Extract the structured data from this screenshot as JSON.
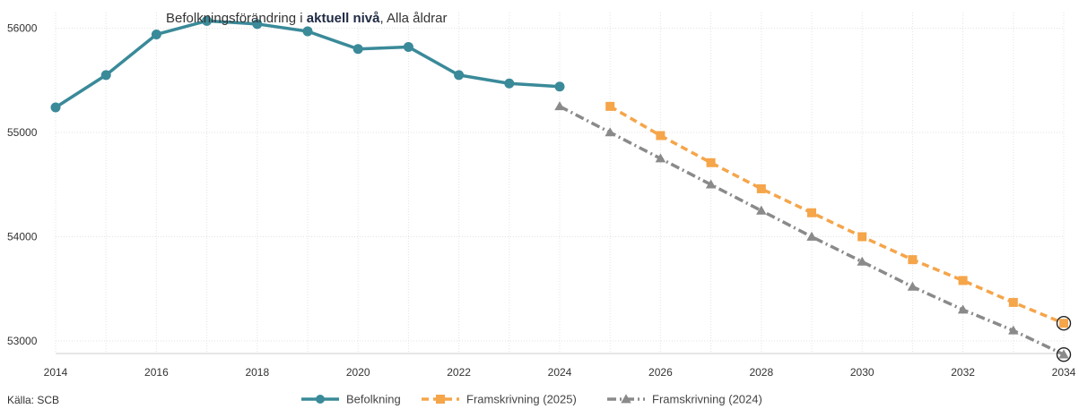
{
  "chart_data": {
    "type": "line",
    "title_prefix": "Befolkningsförändring i ",
    "title_bold": "aktuell nivå",
    "title_suffix": ", Alla åldrar",
    "source": "Källa: SCB",
    "xlim": [
      2014,
      2034
    ],
    "ylim": [
      52880,
      56150
    ],
    "x_ticks": [
      "2014",
      "2016",
      "2018",
      "2020",
      "2022",
      "2024",
      "2026",
      "2028",
      "2030",
      "2032",
      "2034"
    ],
    "y_ticks": [
      "53000",
      "54000",
      "55000",
      "56000"
    ],
    "grid": true,
    "legend_position": "bottom",
    "series": [
      {
        "name": "Befolkning",
        "color": "#3a8a99",
        "marker": "circle",
        "dash": "solid",
        "points": [
          {
            "x": 2014,
            "y": 55240
          },
          {
            "x": 2015,
            "y": 55550
          },
          {
            "x": 2016,
            "y": 55940
          },
          {
            "x": 2017,
            "y": 56070
          },
          {
            "x": 2018,
            "y": 56040
          },
          {
            "x": 2019,
            "y": 55970
          },
          {
            "x": 2020,
            "y": 55800
          },
          {
            "x": 2021,
            "y": 55820
          },
          {
            "x": 2022,
            "y": 55550
          },
          {
            "x": 2023,
            "y": 55470
          },
          {
            "x": 2024,
            "y": 55440
          }
        ]
      },
      {
        "name": "Framskrivning (2025)",
        "color": "#f5a54a",
        "marker": "square",
        "dash": "dashed",
        "points": [
          {
            "x": 2025,
            "y": 55250
          },
          {
            "x": 2026,
            "y": 54970
          },
          {
            "x": 2027,
            "y": 54710
          },
          {
            "x": 2028,
            "y": 54460
          },
          {
            "x": 2029,
            "y": 54230
          },
          {
            "x": 2030,
            "y": 54000
          },
          {
            "x": 2031,
            "y": 53780
          },
          {
            "x": 2032,
            "y": 53580
          },
          {
            "x": 2033,
            "y": 53370
          },
          {
            "x": 2034,
            "y": 53170
          }
        ]
      },
      {
        "name": "Framskrivning (2024)",
        "color": "#8a8a8a",
        "marker": "triangle",
        "dash": "dashdot",
        "points": [
          {
            "x": 2024,
            "y": 55250
          },
          {
            "x": 2025,
            "y": 55000
          },
          {
            "x": 2026,
            "y": 54750
          },
          {
            "x": 2027,
            "y": 54500
          },
          {
            "x": 2028,
            "y": 54250
          },
          {
            "x": 2029,
            "y": 54000
          },
          {
            "x": 2030,
            "y": 53760
          },
          {
            "x": 2031,
            "y": 53520
          },
          {
            "x": 2032,
            "y": 53300
          },
          {
            "x": 2033,
            "y": 53100
          },
          {
            "x": 2034,
            "y": 52870
          }
        ]
      }
    ]
  }
}
